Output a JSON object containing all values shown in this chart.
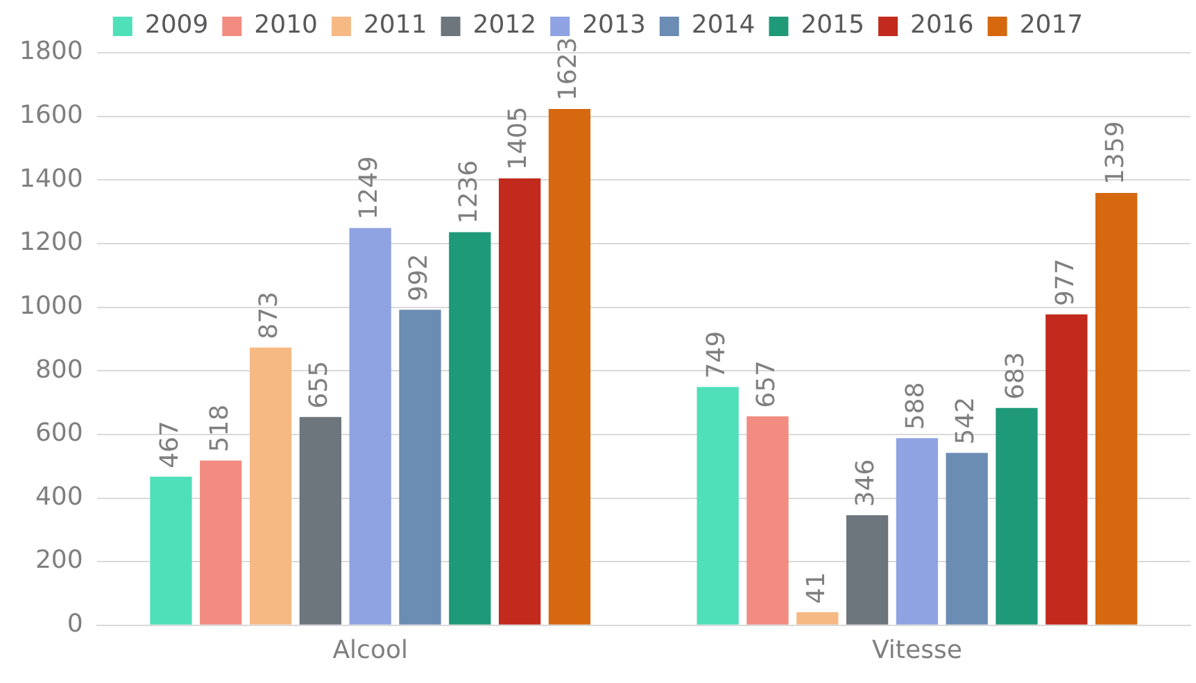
{
  "chart_data": {
    "type": "bar",
    "categories": [
      "Alcool",
      "Vitesse"
    ],
    "series": [
      {
        "name": "2009",
        "color": "#4fe0b9",
        "values": [
          467,
          749
        ]
      },
      {
        "name": "2010",
        "color": "#f28b80",
        "values": [
          518,
          657
        ]
      },
      {
        "name": "2011",
        "color": "#f7b984",
        "values": [
          873,
          41
        ]
      },
      {
        "name": "2012",
        "color": "#6d757d",
        "values": [
          655,
          346
        ]
      },
      {
        "name": "2013",
        "color": "#8fa3e3",
        "values": [
          1249,
          588
        ]
      },
      {
        "name": "2014",
        "color": "#6b8cb3",
        "values": [
          992,
          542
        ]
      },
      {
        "name": "2015",
        "color": "#1f9a79",
        "values": [
          1236,
          683
        ]
      },
      {
        "name": "2016",
        "color": "#c12a1c",
        "values": [
          1405,
          977
        ]
      },
      {
        "name": "2017",
        "color": "#d6680f",
        "values": [
          1623,
          1359
        ]
      }
    ],
    "ylim": [
      0,
      1800
    ],
    "yticks": [
      0,
      200,
      400,
      600,
      800,
      1000,
      1200,
      1400,
      1600,
      1800
    ],
    "grid": "y",
    "legend": "top",
    "data_labels": true
  }
}
